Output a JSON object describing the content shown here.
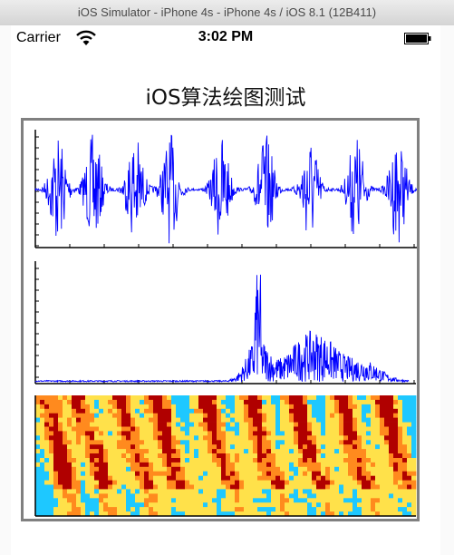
{
  "simulator": {
    "window_title": "iOS Simulator - iPhone 4s - iPhone 4s / iOS 8.1 (12B411)"
  },
  "status_bar": {
    "carrier": "Carrier",
    "time": "3:02 PM",
    "wifi_icon": "wifi-icon",
    "battery_icon": "battery-icon"
  },
  "app": {
    "title": "iOS算法绘图测试"
  },
  "plots": {
    "waveform": {
      "color": "#0000ff",
      "bursts": 9
    },
    "spectrum": {
      "color": "#0000ff"
    },
    "spectrogram": {
      "palette": [
        "#1ec8ff",
        "#ffe14a",
        "#ff8a1e",
        "#b00000"
      ]
    }
  },
  "colors": {
    "plot_line": "#0000ff",
    "frame_border": "#808080"
  }
}
